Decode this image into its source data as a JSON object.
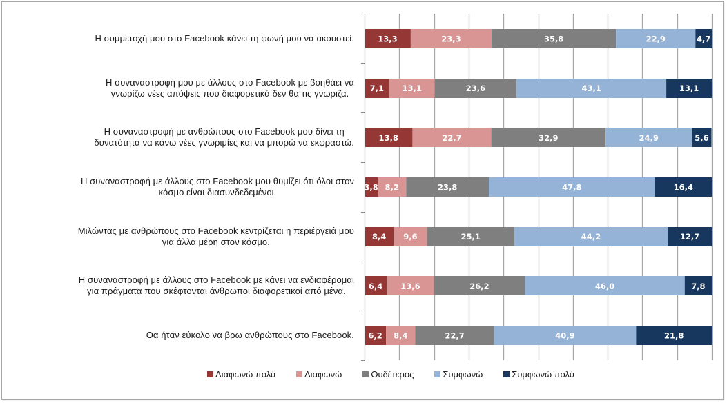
{
  "chart_data": {
    "type": "bar",
    "orientation": "horizontal",
    "stacked": "percent",
    "title": "",
    "xlabel": "",
    "ylabel": "",
    "xlim": [
      0,
      100
    ],
    "grid": true,
    "grid_step": 10,
    "legend_position": "bottom",
    "categories": [
      "Η συμμετοχή μου στο Facebook κάνει τη φωνή μου να ακουστεί.",
      "Η συναναστροφή μου με άλλους στο Facebook με βοηθάει να γνωρίζω νέες απόψεις που διαφορετικά δεν θα τις γνώριζα.",
      "Η συναναστροφή με ανθρώπους στο Facebook μου δίνει τη δυνατότητα να κάνω νέες γνωριμίες και να μπορώ να εκφραστώ.",
      "Η συναναστροφή με άλλους στο Facebook μου θυμίζει ότι όλοι στον κόσμο είναι διασυνδεδεμένοι.",
      "Μιλώντας με ανθρώπους στο Facebook κεντρίζεται η περιέργειά μου για άλλα μέρη στον κόσμο.",
      "Η συναναστροφή με άλλους στο Facebook με κάνει να ενδιαφέρομαι για πράγματα που σκέφτονται άνθρωποι διαφορετικοί από μένα.",
      "Θα ήταν εύκολο να βρω ανθρώπους στο Facebook."
    ],
    "category_lines": [
      [
        "Η συμμετοχή μου στο Facebook κάνει τη φωνή μου να ακουστεί."
      ],
      [
        "Η συναναστροφή μου με άλλους στο Facebook με βοηθάει να",
        "γνωρίζω νέες απόψεις που διαφορετικά δεν θα τις γνώριζα."
      ],
      [
        "Η συναναστροφή με ανθρώπους στο Facebook μου δίνει τη",
        "δυνατότητα να κάνω νέες γνωριμίες και να μπορώ να εκφραστώ."
      ],
      [
        "Η συναναστροφή με άλλους στο Facebook μου θυμίζει ότι όλοι στον",
        "κόσμο είναι διασυνδεδεμένοι."
      ],
      [
        "Μιλώντας με ανθρώπους στο Facebook κεντρίζεται η περιέργειά μου",
        "για άλλα μέρη στον κόσμο."
      ],
      [
        "Η συναναστροφή με άλλους στο Facebook με κάνει να ενδιαφέρομαι",
        "για πράγματα που σκέφτονται άνθρωποι διαφορετικοί από μένα."
      ],
      [
        "Θα ήταν εύκολο να βρω ανθρώπους στο Facebook."
      ]
    ],
    "series": [
      {
        "name": "Διαφωνώ πολύ",
        "color": "#953735",
        "values": [
          13.3,
          7.1,
          13.8,
          3.8,
          8.4,
          6.4,
          6.2
        ],
        "labels": [
          "13,3",
          "7,1",
          "13,8",
          "3,8",
          "8,4",
          "6,4",
          "6,2"
        ]
      },
      {
        "name": "Διαφωνώ",
        "color": "#d99594",
        "values": [
          23.3,
          13.1,
          22.7,
          8.2,
          9.6,
          13.6,
          8.4
        ],
        "labels": [
          "23,3",
          "13,1",
          "22,7",
          "8,2",
          "9,6",
          "13,6",
          "8,4"
        ]
      },
      {
        "name": "Ουδέτερος",
        "color": "#7f7f7f",
        "values": [
          35.8,
          23.6,
          32.9,
          23.8,
          25.1,
          26.2,
          22.7
        ],
        "labels": [
          "35,8",
          "23,6",
          "32,9",
          "23,8",
          "25,1",
          "26,2",
          "22,7"
        ]
      },
      {
        "name": "Συμφωνώ",
        "color": "#95b3d7",
        "values": [
          22.9,
          43.1,
          24.9,
          47.8,
          44.2,
          46.0,
          40.9
        ],
        "labels": [
          "22,9",
          "43,1",
          "24,9",
          "47,8",
          "44,2",
          "46,0",
          "40,9"
        ]
      },
      {
        "name": "Συμφωνώ πολύ",
        "color": "#17375e",
        "values": [
          4.7,
          13.1,
          5.6,
          16.4,
          12.7,
          7.8,
          21.8
        ],
        "labels": [
          "4,7",
          "13,1",
          "5,6",
          "16,4",
          "12,7",
          "7,8",
          "21,8"
        ]
      }
    ]
  },
  "colors": {
    "gridline": "#a6a6a6",
    "axis": "#868686",
    "data_label": "#ffffff",
    "frame_border": "#a6a6a6"
  }
}
